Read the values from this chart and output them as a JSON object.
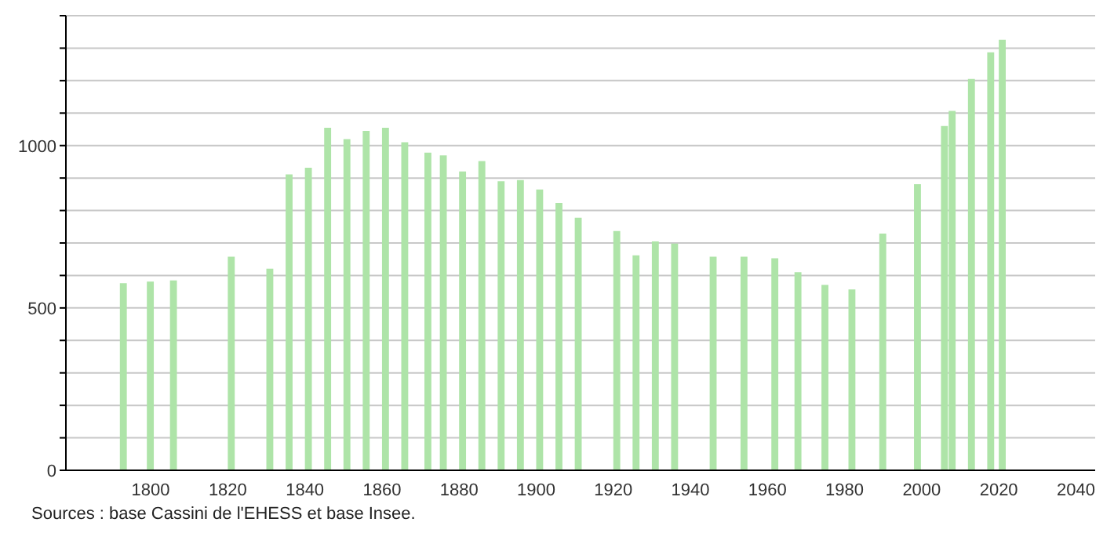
{
  "chart_data": {
    "type": "bar",
    "x": [
      1793,
      1800,
      1806,
      1821,
      1831,
      1836,
      1841,
      1846,
      1851,
      1856,
      1861,
      1866,
      1872,
      1876,
      1881,
      1886,
      1891,
      1896,
      1901,
      1906,
      1911,
      1921,
      1926,
      1931,
      1936,
      1946,
      1954,
      1962,
      1968,
      1975,
      1982,
      1990,
      1999,
      2006,
      2008,
      2013,
      2018,
      2021
    ],
    "values": [
      576,
      581,
      585,
      658,
      621,
      911,
      932,
      1055,
      1020,
      1045,
      1055,
      1010,
      978,
      970,
      920,
      952,
      890,
      894,
      865,
      823,
      778,
      737,
      662,
      705,
      698,
      658,
      658,
      653,
      610,
      571,
      557,
      729,
      881,
      1060,
      1107,
      1205,
      1287,
      1326
    ],
    "color": "#aee4a8",
    "xlim": [
      1778,
      2045
    ],
    "xticks": [
      1800,
      1820,
      1840,
      1860,
      1880,
      1900,
      1920,
      1940,
      1960,
      1980,
      2000,
      2020,
      2040
    ],
    "ylim": [
      0,
      1400
    ],
    "yticks": [
      0,
      {
        "value": 100,
        "label": null
      },
      {
        "value": 200,
        "label": null
      },
      {
        "value": 300,
        "label": null
      },
      {
        "value": 400,
        "label": null
      },
      500,
      {
        "value": 600,
        "label": null
      },
      {
        "value": 700,
        "label": null
      },
      {
        "value": 800,
        "label": null
      },
      {
        "value": 900,
        "label": null
      },
      1000,
      {
        "value": 1100,
        "label": null
      },
      {
        "value": 1200,
        "label": null
      },
      {
        "value": 1300,
        "label": null
      },
      {
        "value": 1400,
        "label": null
      }
    ],
    "grid": "y",
    "annotations": [
      "Sources : base Cassini de l'EHESS et base Insee."
    ]
  }
}
